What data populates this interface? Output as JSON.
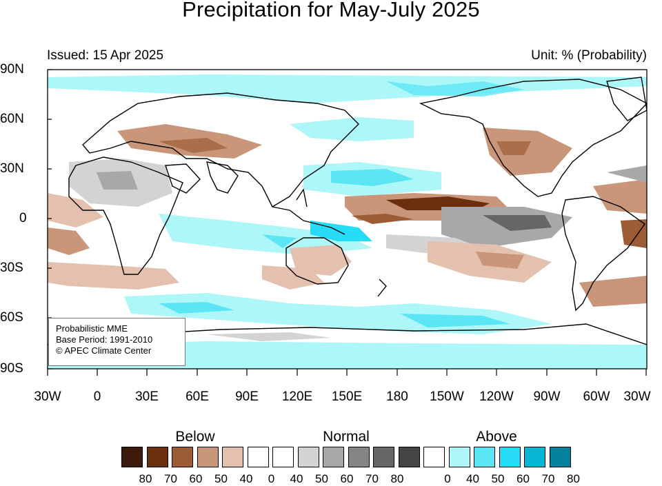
{
  "title": "Precipitation for May-July 2025",
  "issued": "Issued: 15 Apr 2025",
  "unit": "Unit: % (Probability)",
  "info_box": {
    "line1": "Probabilistic MME",
    "line2": "Base Period: 1991-2010",
    "line3": "© APEC Climate Center"
  },
  "axes": {
    "y_ticks": [
      "90N",
      "60N",
      "30N",
      "0",
      "30S",
      "60S",
      "90S"
    ],
    "x_ticks": [
      "30W",
      "0",
      "30E",
      "60E",
      "90E",
      "120E",
      "150E",
      "180",
      "150W",
      "120W",
      "90W",
      "60W",
      "30W"
    ]
  },
  "legend": {
    "groups": [
      {
        "label": "Below",
        "colors": [
          "#3d1a0a",
          "#6b2f0e",
          "#9c5c36",
          "#c9967a",
          "#e3c1ae",
          "#ffffff"
        ],
        "values": [
          "80",
          "70",
          "60",
          "50",
          "40",
          "0"
        ]
      },
      {
        "label": "Normal",
        "colors": [
          "#ffffff",
          "#d3d3d3",
          "#a8a8a8",
          "#858585",
          "#666666",
          "#444444"
        ],
        "values": [
          "40",
          "50",
          "60",
          "70",
          "80"
        ]
      },
      {
        "label": "Above",
        "colors": [
          "#ffffff",
          "#aef7f9",
          "#5ce6f5",
          "#26dcf6",
          "#07b5d3",
          "#03819c"
        ],
        "values": [
          "0",
          "40",
          "50",
          "60",
          "70",
          "80"
        ]
      }
    ]
  },
  "map": {
    "projection": "equirectangular, centered 150E",
    "lon_range": [
      "30W",
      "30W"
    ],
    "lat_range": [
      "90S",
      "90N"
    ]
  }
}
